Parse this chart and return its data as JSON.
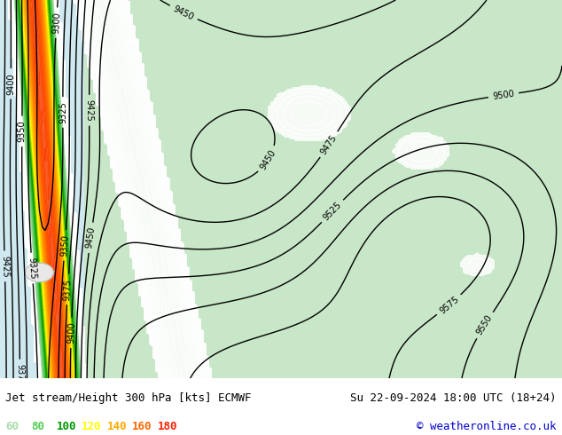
{
  "title_left": "Jet stream/Height 300 hPa [kts] ECMWF",
  "title_right": "Su 22-09-2024 18:00 UTC (18+24)",
  "copyright": "© weatheronline.co.uk",
  "legend_values": [
    60,
    80,
    100,
    120,
    140,
    160,
    180
  ],
  "legend_colors": [
    "#99ff99",
    "#33cc33",
    "#009900",
    "#ffff00",
    "#ffaa00",
    "#ff6600",
    "#ff0000"
  ],
  "background_map_color": "#e8e8e8",
  "ocean_color": "#d0e8f0",
  "land_color": "#c8e6c8",
  "contour_color": "#000000",
  "label_color_left": "#000000",
  "label_color_right": "#000000",
  "copyright_color": "#0000cc",
  "bottom_bg": "#f0f0f0",
  "figsize": [
    6.34,
    4.9
  ],
  "dpi": 100
}
